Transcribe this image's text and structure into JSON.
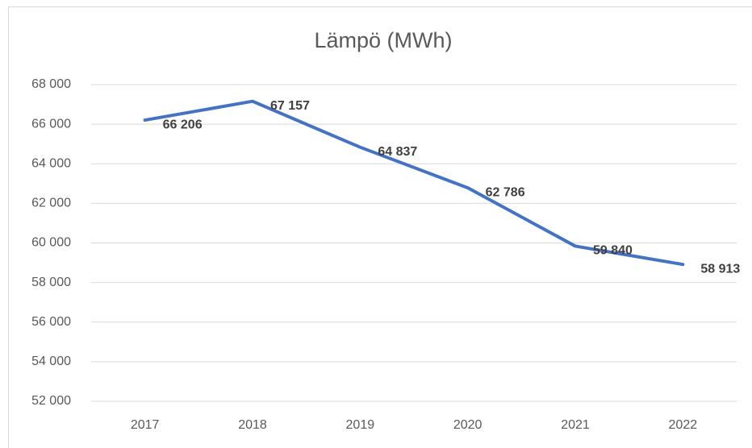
{
  "chart_data": {
    "type": "line",
    "title": "Lämpö (MWh)",
    "categories": [
      "2017",
      "2018",
      "2019",
      "2020",
      "2021",
      "2022"
    ],
    "series": [
      {
        "name": "Lämpö (MWh)",
        "color": "#4472c4",
        "values": [
          66206,
          67157,
          64837,
          62786,
          59840,
          58913
        ],
        "value_labels": [
          "66 206",
          "67 157",
          "64 837",
          "62 786",
          "59 840",
          "58 913"
        ]
      }
    ],
    "ylim": [
      52000,
      68000
    ],
    "yticks": [
      {
        "value": 52000,
        "label": "52 000"
      },
      {
        "value": 54000,
        "label": "54 000"
      },
      {
        "value": 56000,
        "label": "56 000"
      },
      {
        "value": 58000,
        "label": "58 000"
      },
      {
        "value": 60000,
        "label": "60 000"
      },
      {
        "value": 62000,
        "label": "62 000"
      },
      {
        "value": 64000,
        "label": "64 000"
      },
      {
        "value": 66000,
        "label": "66 000"
      },
      {
        "value": 68000,
        "label": "68 000"
      }
    ],
    "grid": true,
    "legend": false
  }
}
